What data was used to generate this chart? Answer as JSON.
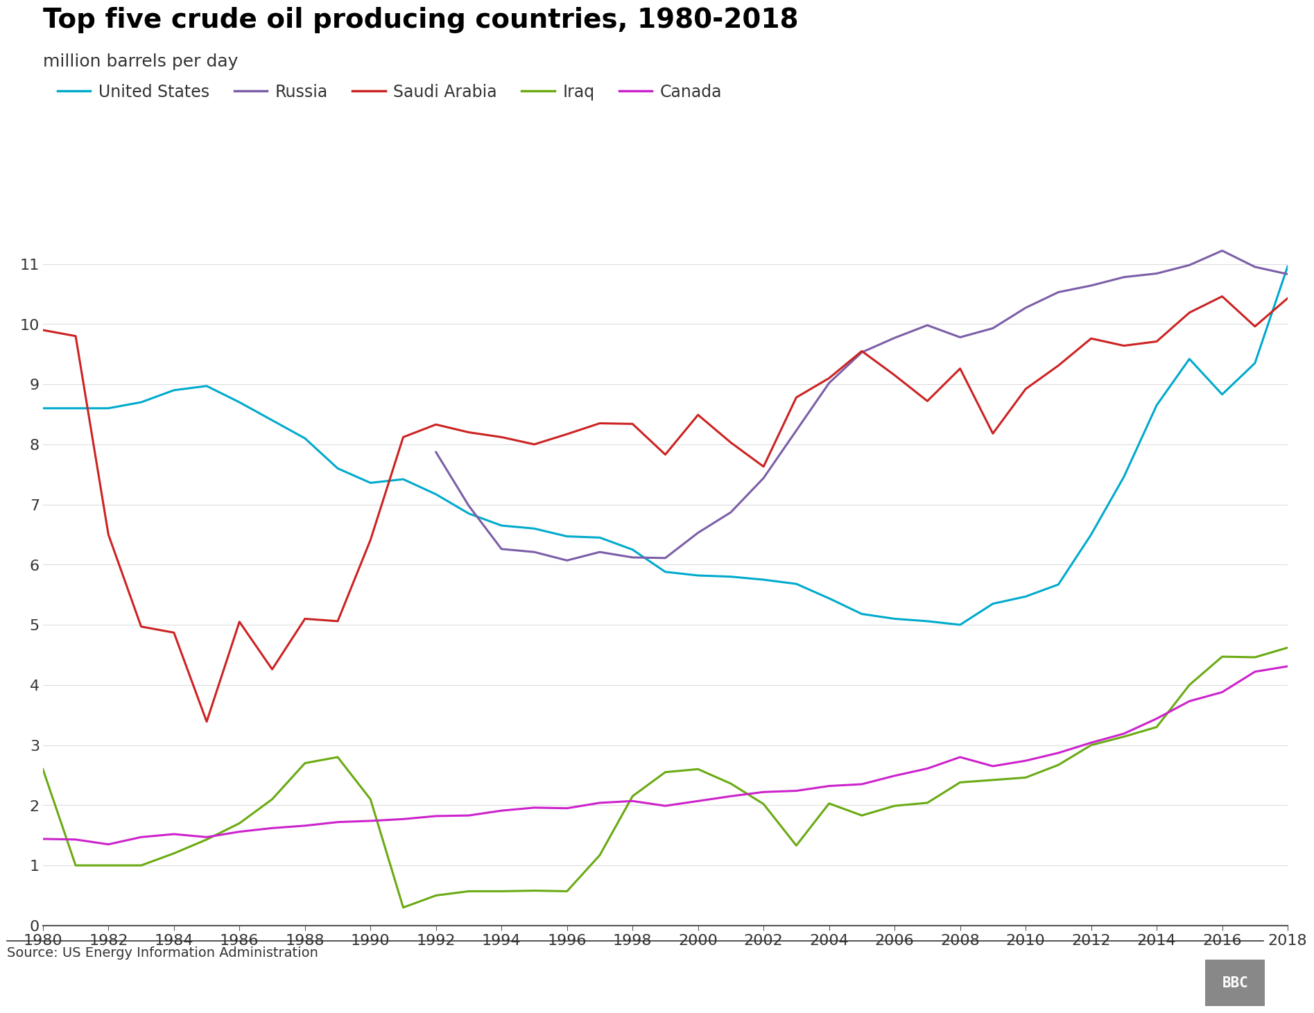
{
  "title": "Top five crude oil producing countries, 1980-2018",
  "subtitle": "million barrels per day",
  "source": "Source: US Energy Information Administration",
  "years": [
    1980,
    1981,
    1982,
    1983,
    1984,
    1985,
    1986,
    1987,
    1988,
    1989,
    1990,
    1991,
    1992,
    1993,
    1994,
    1995,
    1996,
    1997,
    1998,
    1999,
    2000,
    2001,
    2002,
    2003,
    2004,
    2005,
    2006,
    2007,
    2008,
    2009,
    2010,
    2011,
    2012,
    2013,
    2014,
    2015,
    2016,
    2017,
    2018
  ],
  "united_states": [
    8.6,
    8.6,
    8.6,
    8.7,
    8.9,
    8.97,
    8.7,
    8.4,
    8.1,
    7.6,
    7.36,
    7.42,
    7.17,
    6.85,
    6.65,
    6.6,
    6.47,
    6.45,
    6.25,
    5.88,
    5.82,
    5.8,
    5.75,
    5.68,
    5.44,
    5.18,
    5.1,
    5.06,
    5.0,
    5.35,
    5.47,
    5.67,
    6.5,
    7.46,
    8.65,
    9.42,
    8.83,
    9.35,
    10.96
  ],
  "russia_years": [
    1992,
    1993,
    1994,
    1995,
    1996,
    1997,
    1998,
    1999,
    2000,
    2001,
    2002,
    2003,
    2004,
    2005,
    2006,
    2007,
    2008,
    2009,
    2010,
    2011,
    2012,
    2013,
    2014,
    2015,
    2016,
    2017,
    2018
  ],
  "russia_vals": [
    7.87,
    6.98,
    6.26,
    6.21,
    6.07,
    6.21,
    6.12,
    6.11,
    6.53,
    6.87,
    7.44,
    8.23,
    9.02,
    9.53,
    9.77,
    9.98,
    9.78,
    9.93,
    10.27,
    10.53,
    10.64,
    10.78,
    10.84,
    10.98,
    11.22,
    10.95,
    10.83
  ],
  "saudi_arabia": [
    9.9,
    9.8,
    6.5,
    4.97,
    4.87,
    3.39,
    5.05,
    4.26,
    5.1,
    5.06,
    6.41,
    8.12,
    8.33,
    8.2,
    8.12,
    8.0,
    8.17,
    8.35,
    8.34,
    7.83,
    8.49,
    8.03,
    7.63,
    8.78,
    9.1,
    9.55,
    9.15,
    8.72,
    9.26,
    8.18,
    8.92,
    9.31,
    9.76,
    9.64,
    9.71,
    10.19,
    10.46,
    9.96,
    10.43
  ],
  "iraq": [
    2.6,
    1.0,
    1.0,
    1.0,
    1.2,
    1.43,
    1.7,
    2.1,
    2.7,
    2.8,
    2.1,
    0.3,
    0.5,
    0.57,
    0.57,
    0.58,
    0.57,
    1.17,
    2.15,
    2.55,
    2.6,
    2.36,
    2.02,
    1.33,
    2.03,
    1.83,
    1.99,
    2.04,
    2.38,
    2.42,
    2.46,
    2.67,
    3.0,
    3.14,
    3.3,
    4.0,
    4.47,
    4.46,
    4.62
  ],
  "canada": [
    1.44,
    1.43,
    1.35,
    1.47,
    1.52,
    1.47,
    1.56,
    1.62,
    1.66,
    1.72,
    1.74,
    1.77,
    1.82,
    1.83,
    1.91,
    1.96,
    1.95,
    2.04,
    2.07,
    1.99,
    2.07,
    2.15,
    2.22,
    2.24,
    2.32,
    2.35,
    2.49,
    2.61,
    2.8,
    2.65,
    2.74,
    2.87,
    3.04,
    3.19,
    3.44,
    3.73,
    3.88,
    4.22,
    4.31
  ],
  "colors": {
    "united_states": "#00aacc",
    "russia": "#7b5ea7",
    "saudi_arabia": "#cc2222",
    "iraq": "#6aaa12",
    "canada": "#cc22cc"
  },
  "ylim": [
    0,
    11.5
  ],
  "yticks": [
    0,
    1,
    2,
    3,
    4,
    5,
    6,
    7,
    8,
    9,
    10,
    11
  ],
  "background_color": "#ffffff",
  "title_fontsize": 28,
  "subtitle_fontsize": 18,
  "legend_fontsize": 17,
  "tick_fontsize": 16,
  "source_fontsize": 14
}
